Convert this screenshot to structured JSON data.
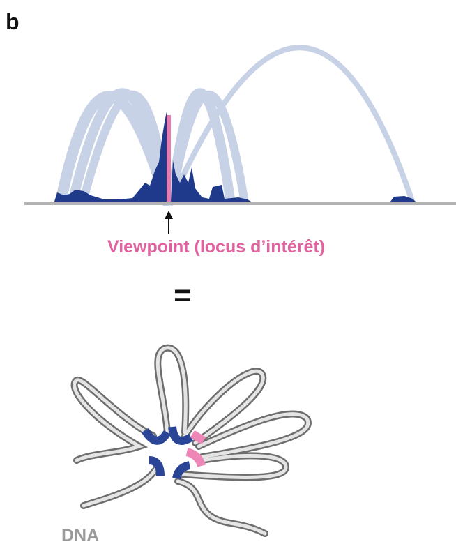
{
  "panel_label": "b",
  "viewpoint_label": "Viewpoint (locus d’intérêt)",
  "equals": "=",
  "dna_label": "DNA"
}
